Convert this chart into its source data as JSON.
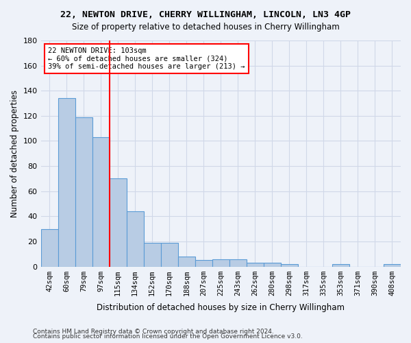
{
  "title": "22, NEWTON DRIVE, CHERRY WILLINGHAM, LINCOLN, LN3 4GP",
  "subtitle": "Size of property relative to detached houses in Cherry Willingham",
  "xlabel": "Distribution of detached houses by size in Cherry Willingham",
  "ylabel": "Number of detached properties",
  "categories": [
    "42sqm",
    "60sqm",
    "79sqm",
    "97sqm",
    "115sqm",
    "134sqm",
    "152sqm",
    "170sqm",
    "188sqm",
    "207sqm",
    "225sqm",
    "243sqm",
    "262sqm",
    "280sqm",
    "298sqm",
    "317sqm",
    "335sqm",
    "353sqm",
    "371sqm",
    "390sqm",
    "408sqm"
  ],
  "values": [
    30,
    134,
    119,
    103,
    70,
    44,
    19,
    19,
    8,
    5,
    6,
    6,
    3,
    3,
    2,
    0,
    0,
    2,
    0,
    0,
    2
  ],
  "bar_color": "#b8cce4",
  "bar_edge_color": "#5b9bd5",
  "grid_color": "#d0d8e8",
  "background_color": "#eef2f9",
  "red_line_x": 3,
  "annotation_line1": "22 NEWTON DRIVE: 103sqm",
  "annotation_line2": "← 60% of detached houses are smaller (324)",
  "annotation_line3": "39% of semi-detached houses are larger (213) →",
  "annotation_box_color": "white",
  "annotation_box_edge": "red",
  "footer1": "Contains HM Land Registry data © Crown copyright and database right 2024.",
  "footer2": "Contains public sector information licensed under the Open Government Licence v3.0.",
  "ylim": [
    0,
    180
  ],
  "yticks": [
    0,
    20,
    40,
    60,
    80,
    100,
    120,
    140,
    160,
    180
  ]
}
